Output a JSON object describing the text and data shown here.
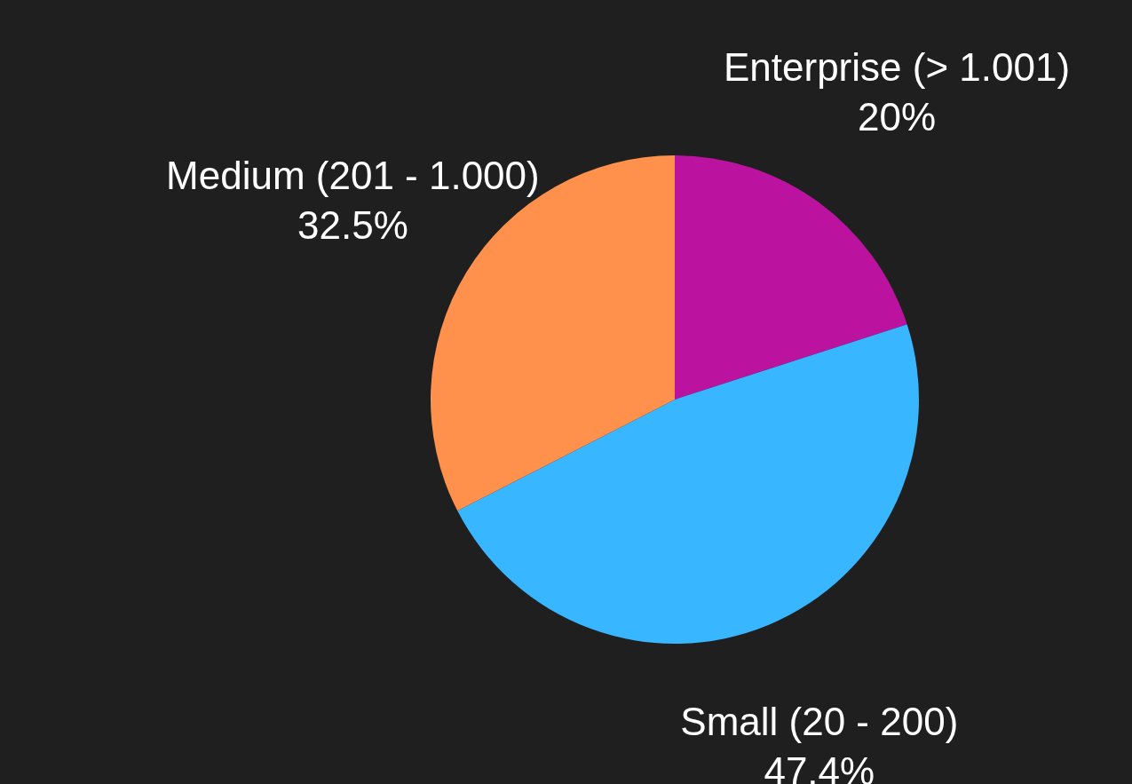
{
  "chart_data": {
    "type": "pie",
    "categories": [
      "Enterprise (> 1.001)",
      "Small (20 - 200)",
      "Medium (201 - 1.000)"
    ],
    "values": [
      20,
      47.4,
      32.5
    ],
    "colors": [
      "#bb129f",
      "#38b6ff",
      "#ff914d"
    ],
    "value_labels": [
      "20%",
      "47.4%",
      "32.5%"
    ]
  }
}
